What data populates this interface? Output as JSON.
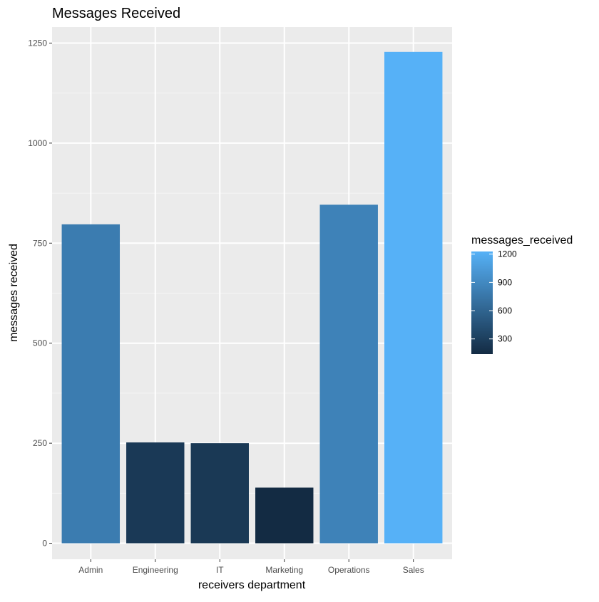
{
  "chart_data": {
    "type": "bar",
    "title": "Messages Received",
    "xlabel": "receivers department",
    "ylabel": "messages received",
    "categories": [
      "Admin",
      "Engineering",
      "IT",
      "Marketing",
      "Operations",
      "Sales"
    ],
    "values": [
      797,
      252,
      250,
      139,
      846,
      1228
    ],
    "ylim": [
      -40,
      1290
    ],
    "yticks": [
      0,
      250,
      500,
      750,
      1000,
      1250
    ],
    "grid": true,
    "legend": {
      "title": "messages_received",
      "position": "right",
      "ticks": [
        300,
        600,
        900,
        1200
      ],
      "range": [
        139,
        1228
      ],
      "color_low": "#132B43",
      "color_high": "#56B1F7"
    },
    "colors": {
      "panel_background": "#EBEBEB",
      "grid_major": "#FFFFFF",
      "grid_minor": "#F5F5F5"
    }
  }
}
